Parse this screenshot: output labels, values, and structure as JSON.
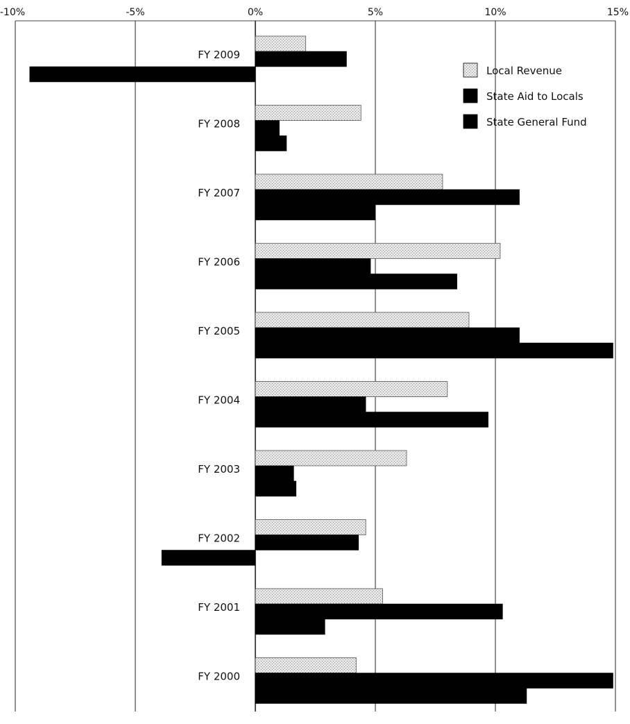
{
  "chart_data": {
    "type": "bar",
    "orientation": "horizontal",
    "title": "",
    "xlabel": "",
    "ylabel": "",
    "xlim": [
      -10,
      15
    ],
    "x_ticks": [
      -10,
      -5,
      0,
      5,
      10,
      15
    ],
    "x_tick_labels": [
      "-10%",
      "-5%",
      "0%",
      "5%",
      "10%",
      "15%"
    ],
    "grid": "vertical",
    "legend_position": "top-right",
    "categories": [
      "FY 2009",
      "FY 2008",
      "FY 2007",
      "FY 2006",
      "FY 2005",
      "FY 2004",
      "FY 2003",
      "FY 2002",
      "FY 2001",
      "FY 2000"
    ],
    "series": [
      {
        "name": "Local Revenue",
        "color": "#d0d0d0",
        "pattern": "stipple",
        "values": [
          2.1,
          4.4,
          7.8,
          10.2,
          8.9,
          8.0,
          6.3,
          4.6,
          5.3,
          4.2
        ]
      },
      {
        "name": "State Aid to Locals",
        "color": "#000000",
        "values": [
          3.8,
          1.0,
          11.0,
          4.8,
          11.0,
          4.6,
          1.6,
          4.3,
          10.3,
          14.9
        ]
      },
      {
        "name": "State General Fund",
        "color": "#000000",
        "values": [
          -9.4,
          1.3,
          5.0,
          8.4,
          14.9,
          9.7,
          1.7,
          -3.9,
          2.9,
          11.3
        ]
      }
    ]
  }
}
